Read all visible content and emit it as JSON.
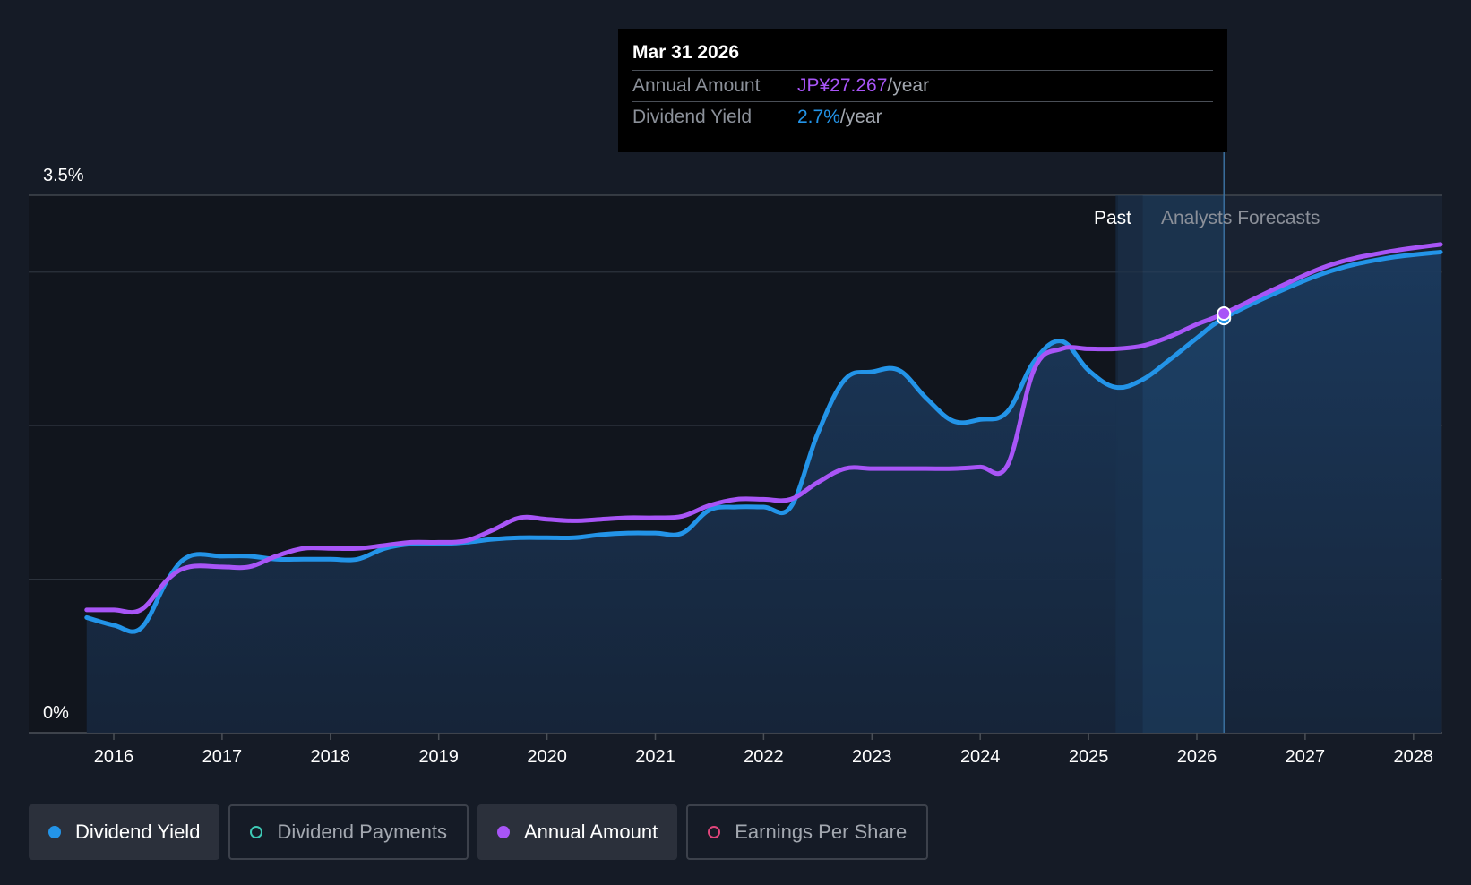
{
  "tooltip": {
    "date": "Mar 31 2026",
    "annual_label": "Annual Amount",
    "annual_value": "JP¥27.267",
    "annual_unit": "/year",
    "yield_label": "Dividend Yield",
    "yield_value": "2.7%",
    "yield_unit": "/year"
  },
  "legend": [
    {
      "label": "Dividend Yield",
      "color": "#2394e8",
      "filled": true,
      "active": true
    },
    {
      "label": "Dividend Payments",
      "color": "#3ec9b5",
      "filled": false,
      "active": false
    },
    {
      "label": "Annual Amount",
      "color": "#a855f7",
      "filled": true,
      "active": true
    },
    {
      "label": "Earnings Per Share",
      "color": "#e0457b",
      "filled": false,
      "active": false
    }
  ],
  "chart_data": {
    "type": "line",
    "y_tick_labels": [
      "3.5%",
      "0%"
    ],
    "ylim": [
      0,
      3.5
    ],
    "x_tick_labels": [
      "2016",
      "2017",
      "2018",
      "2019",
      "2020",
      "2021",
      "2022",
      "2023",
      "2024",
      "2025",
      "2026",
      "2027",
      "2028"
    ],
    "xlim": [
      2015.75,
      2028.25
    ],
    "past_label": "Past",
    "forecast_label": "Analysts Forecasts",
    "forecast_start": 2025.5,
    "highlight_x": 2026.25,
    "series": [
      {
        "name": "Dividend Yield",
        "color": "#2394e8",
        "points": [
          [
            2015.75,
            0.75
          ],
          [
            2016.0,
            0.7
          ],
          [
            2016.25,
            0.68
          ],
          [
            2016.5,
            1.0
          ],
          [
            2016.7,
            1.15
          ],
          [
            2017.0,
            1.15
          ],
          [
            2017.25,
            1.15
          ],
          [
            2017.5,
            1.13
          ],
          [
            2017.75,
            1.13
          ],
          [
            2018.0,
            1.13
          ],
          [
            2018.25,
            1.13
          ],
          [
            2018.5,
            1.2
          ],
          [
            2018.75,
            1.23
          ],
          [
            2019.0,
            1.23
          ],
          [
            2019.25,
            1.24
          ],
          [
            2019.5,
            1.26
          ],
          [
            2019.75,
            1.27
          ],
          [
            2020.0,
            1.27
          ],
          [
            2020.25,
            1.27
          ],
          [
            2020.5,
            1.29
          ],
          [
            2020.75,
            1.3
          ],
          [
            2021.0,
            1.3
          ],
          [
            2021.25,
            1.3
          ],
          [
            2021.5,
            1.45
          ],
          [
            2021.75,
            1.47
          ],
          [
            2022.0,
            1.47
          ],
          [
            2022.25,
            1.47
          ],
          [
            2022.5,
            1.95
          ],
          [
            2022.75,
            2.3
          ],
          [
            2023.0,
            2.35
          ],
          [
            2023.25,
            2.36
          ],
          [
            2023.5,
            2.18
          ],
          [
            2023.75,
            2.03
          ],
          [
            2024.0,
            2.04
          ],
          [
            2024.25,
            2.09
          ],
          [
            2024.5,
            2.42
          ],
          [
            2024.75,
            2.55
          ],
          [
            2025.0,
            2.36
          ],
          [
            2025.25,
            2.25
          ],
          [
            2025.5,
            2.3
          ],
          [
            2025.75,
            2.43
          ],
          [
            2026.0,
            2.57
          ],
          [
            2026.25,
            2.7
          ],
          [
            2026.75,
            2.87
          ],
          [
            2027.25,
            3.01
          ],
          [
            2027.75,
            3.09
          ],
          [
            2028.25,
            3.13
          ]
        ]
      },
      {
        "name": "Annual Amount",
        "color": "#a855f7",
        "points": [
          [
            2015.75,
            0.8
          ],
          [
            2016.0,
            0.8
          ],
          [
            2016.25,
            0.8
          ],
          [
            2016.5,
            1.0
          ],
          [
            2016.7,
            1.08
          ],
          [
            2017.0,
            1.08
          ],
          [
            2017.25,
            1.08
          ],
          [
            2017.5,
            1.15
          ],
          [
            2017.75,
            1.2
          ],
          [
            2018.0,
            1.2
          ],
          [
            2018.25,
            1.2
          ],
          [
            2018.5,
            1.22
          ],
          [
            2018.75,
            1.24
          ],
          [
            2019.0,
            1.24
          ],
          [
            2019.25,
            1.25
          ],
          [
            2019.5,
            1.32
          ],
          [
            2019.75,
            1.4
          ],
          [
            2020.0,
            1.39
          ],
          [
            2020.25,
            1.38
          ],
          [
            2020.5,
            1.39
          ],
          [
            2020.75,
            1.4
          ],
          [
            2021.0,
            1.4
          ],
          [
            2021.25,
            1.41
          ],
          [
            2021.5,
            1.48
          ],
          [
            2021.75,
            1.52
          ],
          [
            2022.0,
            1.52
          ],
          [
            2022.25,
            1.52
          ],
          [
            2022.5,
            1.63
          ],
          [
            2022.75,
            1.72
          ],
          [
            2023.0,
            1.72
          ],
          [
            2023.25,
            1.72
          ],
          [
            2023.5,
            1.72
          ],
          [
            2023.75,
            1.72
          ],
          [
            2024.0,
            1.73
          ],
          [
            2024.25,
            1.74
          ],
          [
            2024.5,
            2.37
          ],
          [
            2024.75,
            2.5
          ],
          [
            2025.0,
            2.5
          ],
          [
            2025.25,
            2.5
          ],
          [
            2025.5,
            2.52
          ],
          [
            2025.75,
            2.58
          ],
          [
            2026.0,
            2.66
          ],
          [
            2026.25,
            2.73
          ],
          [
            2026.75,
            2.9
          ],
          [
            2027.25,
            3.05
          ],
          [
            2027.75,
            3.13
          ],
          [
            2028.25,
            3.18
          ]
        ]
      }
    ]
  }
}
